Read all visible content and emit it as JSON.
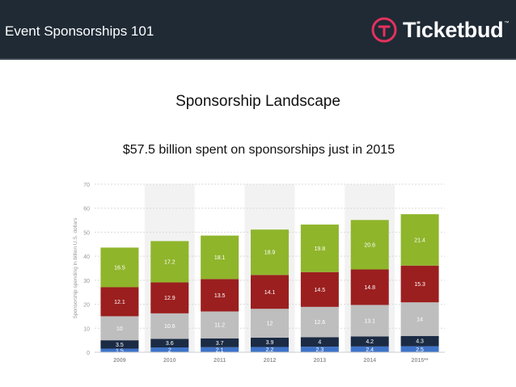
{
  "header": {
    "title": "Event Sponsorships 101",
    "brand": "Ticketbud",
    "brand_mark": "™"
  },
  "slide": {
    "title": "Sponsorship Landscape",
    "subtitle": "$57.5 billion spent on sponsorships just in 2015"
  },
  "colors": {
    "header_bg": "#1f2a35",
    "logo_accent": "#e5315d",
    "series": [
      "#3e73c9",
      "#1b2b44",
      "#bebebe",
      "#9b1f1f",
      "#8fb52b"
    ]
  },
  "chart_data": {
    "type": "bar",
    "stacked": true,
    "categories": [
      "2009",
      "2010",
      "2011",
      "2012",
      "2013",
      "2014",
      "2015**"
    ],
    "ylabel": "Sponsorship spending in billion U.S. dollars",
    "ylim": [
      0,
      70
    ],
    "yticks": [
      0,
      10,
      20,
      30,
      40,
      50,
      60,
      70
    ],
    "grid": true,
    "series": [
      {
        "values": [
          1.5,
          2,
          2.1,
          2.2,
          2.3,
          2.4,
          2.5
        ]
      },
      {
        "values": [
          3.5,
          3.6,
          3.7,
          3.9,
          4,
          4.2,
          4.3
        ]
      },
      {
        "values": [
          10,
          10.6,
          11.2,
          12,
          12.6,
          13.1,
          14
        ]
      },
      {
        "values": [
          12.1,
          12.9,
          13.5,
          14.1,
          14.5,
          14.8,
          15.3
        ]
      },
      {
        "values": [
          16.5,
          17.2,
          18.1,
          18.9,
          19.8,
          20.6,
          21.4
        ]
      }
    ]
  }
}
